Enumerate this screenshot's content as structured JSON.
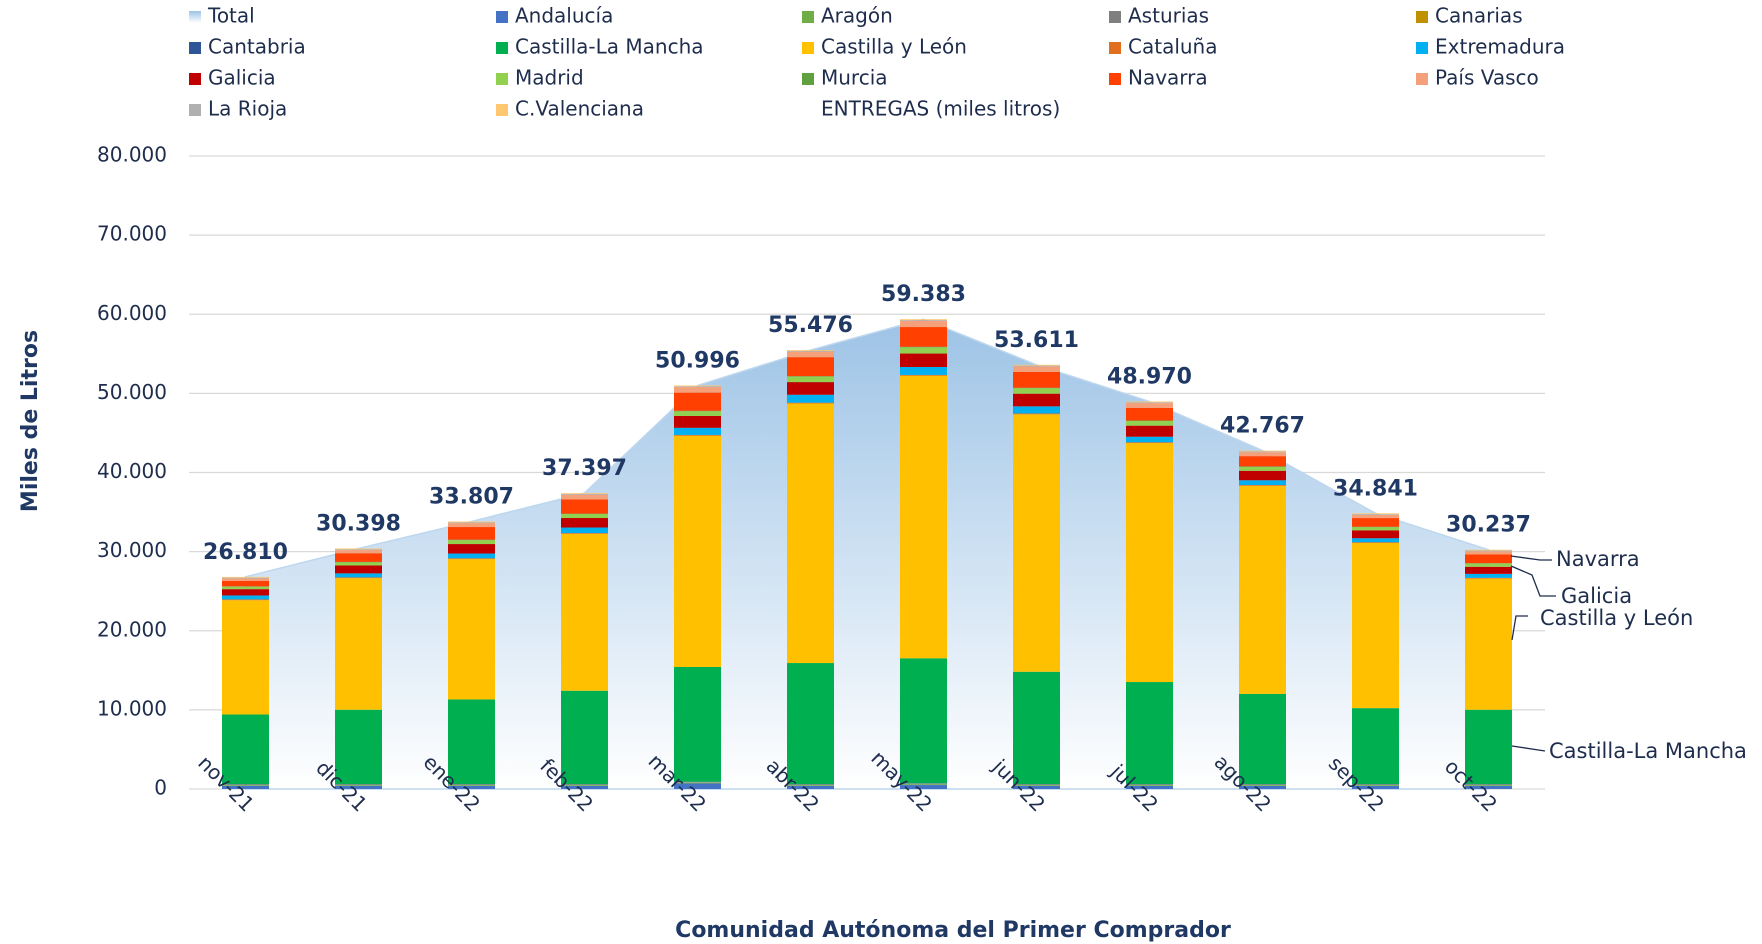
{
  "chart_data": {
    "type": "bar",
    "x_title": "Comunidad Autónoma del Primer Comprador",
    "y_title": "Miles de Litros",
    "legend_note": "ENTREGAS (miles litros)",
    "categories": [
      "nov-21",
      "dic-21",
      "ene-22",
      "feb-22",
      "mar-22",
      "abr-22",
      "may-22",
      "jun-22",
      "jul-22",
      "ago-22",
      "sep-22",
      "oct-22"
    ],
    "ylim": [
      0,
      80000
    ],
    "yticks": [
      0,
      {
        "value": 10000,
        "label": "10.000"
      },
      {
        "value": 20000,
        "label": "20.000"
      },
      {
        "value": 30000,
        "label": "30.000"
      },
      {
        "value": 40000,
        "label": "40.000"
      },
      {
        "value": 50000,
        "label": "50.000"
      },
      {
        "value": 60000,
        "label": "60.000"
      },
      {
        "value": 70000,
        "label": "70.000"
      },
      {
        "value": 80000,
        "label": "80.000"
      }
    ],
    "grid": true,
    "series": [
      {
        "name": "Total",
        "type": "area",
        "color": "#bdd7ee",
        "values": [
          26810,
          30398,
          33807,
          37397,
          50996,
          55476,
          59383,
          53611,
          48970,
          42767,
          34841,
          30237
        ],
        "value_labels": [
          "26.810",
          "30.398",
          "33.807",
          "37.397",
          "50.996",
          "55.476",
          "59.383",
          "53.611",
          "48.970",
          "42.767",
          "34.841",
          "30.237"
        ]
      },
      {
        "name": "Andalucía",
        "color": "#4472c4",
        "values": [
          400,
          400,
          400,
          400,
          700,
          400,
          500,
          400,
          400,
          400,
          400,
          400
        ]
      },
      {
        "name": "Aragón",
        "color": "#70ad47",
        "values": [
          100,
          100,
          100,
          100,
          100,
          100,
          100,
          100,
          100,
          100,
          100,
          100
        ]
      },
      {
        "name": "Asturias",
        "color": "#7f7f7f",
        "values": [
          50,
          50,
          50,
          50,
          50,
          50,
          50,
          50,
          50,
          50,
          50,
          50
        ]
      },
      {
        "name": "Canarias",
        "color": "#bf9000",
        "values": [
          20,
          20,
          20,
          20,
          20,
          20,
          20,
          20,
          20,
          20,
          20,
          20
        ]
      },
      {
        "name": "Cantabria",
        "color": "#2f5597",
        "values": [
          50,
          50,
          50,
          50,
          50,
          50,
          50,
          50,
          50,
          50,
          50,
          50
        ]
      },
      {
        "name": "Castilla-La Mancha",
        "color": "#00b050",
        "values": [
          8800,
          9400,
          10700,
          11800,
          14500,
          15300,
          15800,
          14200,
          12900,
          11400,
          9600,
          9400
        ]
      },
      {
        "name": "Castilla y León",
        "color": "#ffc000",
        "values": [
          14440,
          16628,
          17737,
          19827,
          29226,
          32806,
          35713,
          32541,
          30200,
          26297,
          20871,
          16567
        ]
      },
      {
        "name": "Cataluña",
        "color": "#e07020",
        "values": [
          100,
          100,
          100,
          100,
          100,
          100,
          100,
          100,
          100,
          100,
          100,
          100
        ]
      },
      {
        "name": "Extremadura",
        "color": "#00b0f0",
        "values": [
          500,
          500,
          600,
          700,
          900,
          1000,
          1000,
          900,
          700,
          600,
          500,
          500
        ]
      },
      {
        "name": "Galicia",
        "color": "#c00000",
        "values": [
          800,
          1000,
          1200,
          1200,
          1500,
          1600,
          1700,
          1600,
          1400,
          1200,
          1000,
          900
        ]
      },
      {
        "name": "Madrid",
        "color": "#92d050",
        "values": [
          300,
          400,
          500,
          500,
          600,
          700,
          800,
          700,
          600,
          500,
          400,
          400
        ]
      },
      {
        "name": "Murcia",
        "color": "#5fa040",
        "values": [
          50,
          50,
          50,
          50,
          50,
          50,
          50,
          50,
          50,
          50,
          50,
          50
        ]
      },
      {
        "name": "Navarra",
        "color": "#ff4000",
        "values": [
          700,
          1100,
          1600,
          1800,
          2300,
          2400,
          2500,
          2000,
          1600,
          1300,
          1100,
          1100
        ]
      },
      {
        "name": "País Vasco",
        "color": "#f4a07a",
        "values": [
          300,
          400,
          500,
          600,
          700,
          700,
          800,
          700,
          600,
          500,
          400,
          400
        ]
      },
      {
        "name": "La Rioja",
        "color": "#b0b0b0",
        "values": [
          100,
          100,
          100,
          100,
          100,
          100,
          100,
          100,
          100,
          100,
          100,
          100
        ]
      },
      {
        "name": "C.Valenciana",
        "color": "#ffc870",
        "values": [
          100,
          100,
          100,
          100,
          100,
          100,
          100,
          100,
          100,
          100,
          100,
          100
        ]
      }
    ],
    "annotations": [
      "Navarra",
      "Galicia",
      "Castilla y León",
      "Castilla-La Mancha"
    ]
  }
}
